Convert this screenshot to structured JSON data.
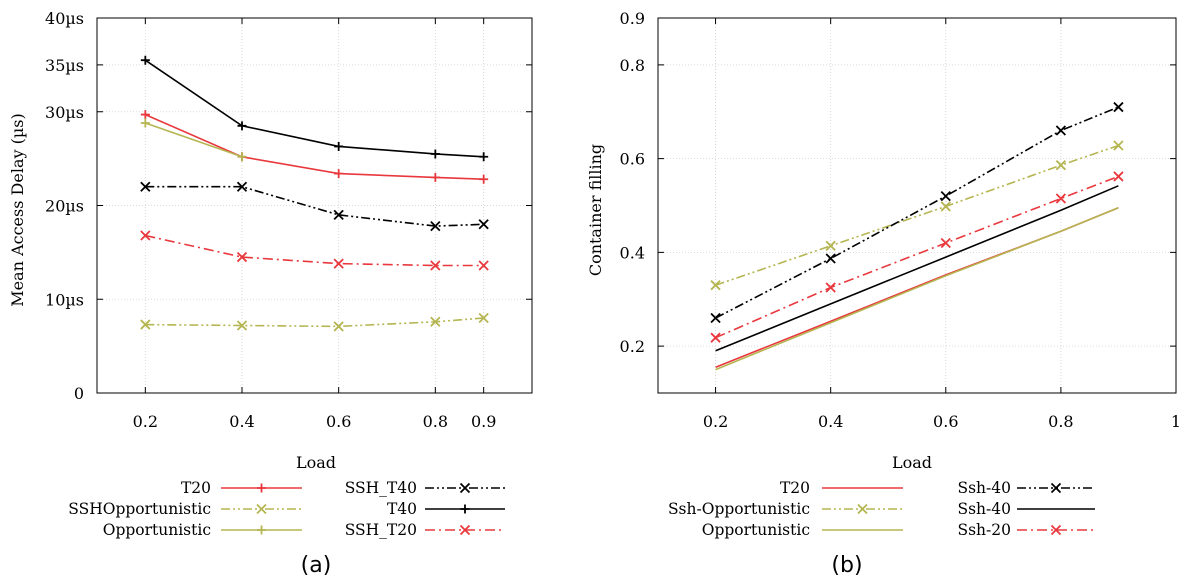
{
  "colors": {
    "red": "#e8383d",
    "olive": "#b5b551",
    "black": "#000000"
  },
  "chart_data": [
    {
      "type": "line",
      "caption": "(a)",
      "xlabel": "Load",
      "ylabel": "Mean Access Delay (µs)",
      "x_ticks": [
        "0.2",
        "0.4",
        "0.6",
        "0.8",
        "0.9"
      ],
      "y_ticks": [
        "0",
        "10µs",
        "20µs",
        "30µs",
        "35µs",
        "40µs"
      ],
      "xlim": [
        0.1,
        1.0
      ],
      "ylim": [
        0,
        40
      ],
      "grid": true,
      "legend_position": "bottom",
      "x": [
        0.2,
        0.4,
        0.6,
        0.8,
        0.9
      ],
      "series": [
        {
          "name": "T20",
          "values": [
            29.7,
            25.2,
            23.4,
            23.0,
            22.8
          ],
          "color": "red",
          "dash": "solid",
          "marker": "plus"
        },
        {
          "name": "SSHOpportunistic",
          "values": [
            7.3,
            7.2,
            7.1,
            7.6,
            8.0
          ],
          "color": "olive",
          "dash": "dashdotdot",
          "marker": "cross"
        },
        {
          "name": "Opportunistic",
          "values": [
            28.8,
            25.2,
            null,
            null,
            null
          ],
          "color": "olive",
          "dash": "solid",
          "marker": "plus"
        },
        {
          "name": "SSH_T40",
          "values": [
            22.0,
            22.0,
            19.0,
            17.8,
            18.0
          ],
          "color": "black",
          "dash": "dashdotdot",
          "marker": "cross"
        },
        {
          "name": "T40",
          "values": [
            35.5,
            28.5,
            26.3,
            25.5,
            25.2
          ],
          "color": "black",
          "dash": "solid",
          "marker": "plus"
        },
        {
          "name": "SSH_T20",
          "values": [
            16.8,
            14.5,
            13.8,
            13.6,
            13.6
          ],
          "color": "red",
          "dash": "dashdot",
          "marker": "cross"
        }
      ]
    },
    {
      "type": "line",
      "caption": "(b)",
      "xlabel": "Load",
      "ylabel": "Container filling",
      "x_ticks": [
        "0.2",
        "0.4",
        "0.6",
        "0.8",
        "1"
      ],
      "y_ticks": [
        "0.2",
        "0.4",
        "0.6",
        "0.8",
        "0.9"
      ],
      "xlim": [
        0.1,
        1.0
      ],
      "ylim": [
        0.1,
        0.9
      ],
      "grid": true,
      "legend_position": "bottom",
      "x": [
        0.2,
        0.4,
        0.6,
        0.8,
        0.9
      ],
      "series": [
        {
          "name": "T20",
          "values": [
            0.155,
            0.253,
            0.352,
            0.445,
            0.495
          ],
          "color": "red",
          "dash": "solid",
          "marker": "none"
        },
        {
          "name": "Ssh-Opportunistic",
          "values": [
            0.33,
            0.414,
            0.498,
            0.586,
            0.628
          ],
          "color": "olive",
          "dash": "dashdotdot",
          "marker": "cross"
        },
        {
          "name": "Opportunistic",
          "values": [
            0.15,
            0.25,
            0.35,
            0.445,
            0.495
          ],
          "color": "olive",
          "dash": "solid",
          "marker": "none"
        },
        {
          "name": "Ssh-40",
          "values": [
            0.26,
            0.387,
            0.52,
            0.66,
            0.71
          ],
          "color": "black",
          "dash": "dashdotdot",
          "marker": "cross"
        },
        {
          "name": "Ssh-40",
          "values": [
            0.19,
            0.29,
            0.39,
            0.49,
            0.542
          ],
          "color": "black",
          "dash": "solid",
          "marker": "none"
        },
        {
          "name": "Ssh-20",
          "values": [
            0.218,
            0.325,
            0.42,
            0.515,
            0.562
          ],
          "color": "red",
          "dash": "dashdot",
          "marker": "cross"
        }
      ]
    }
  ]
}
